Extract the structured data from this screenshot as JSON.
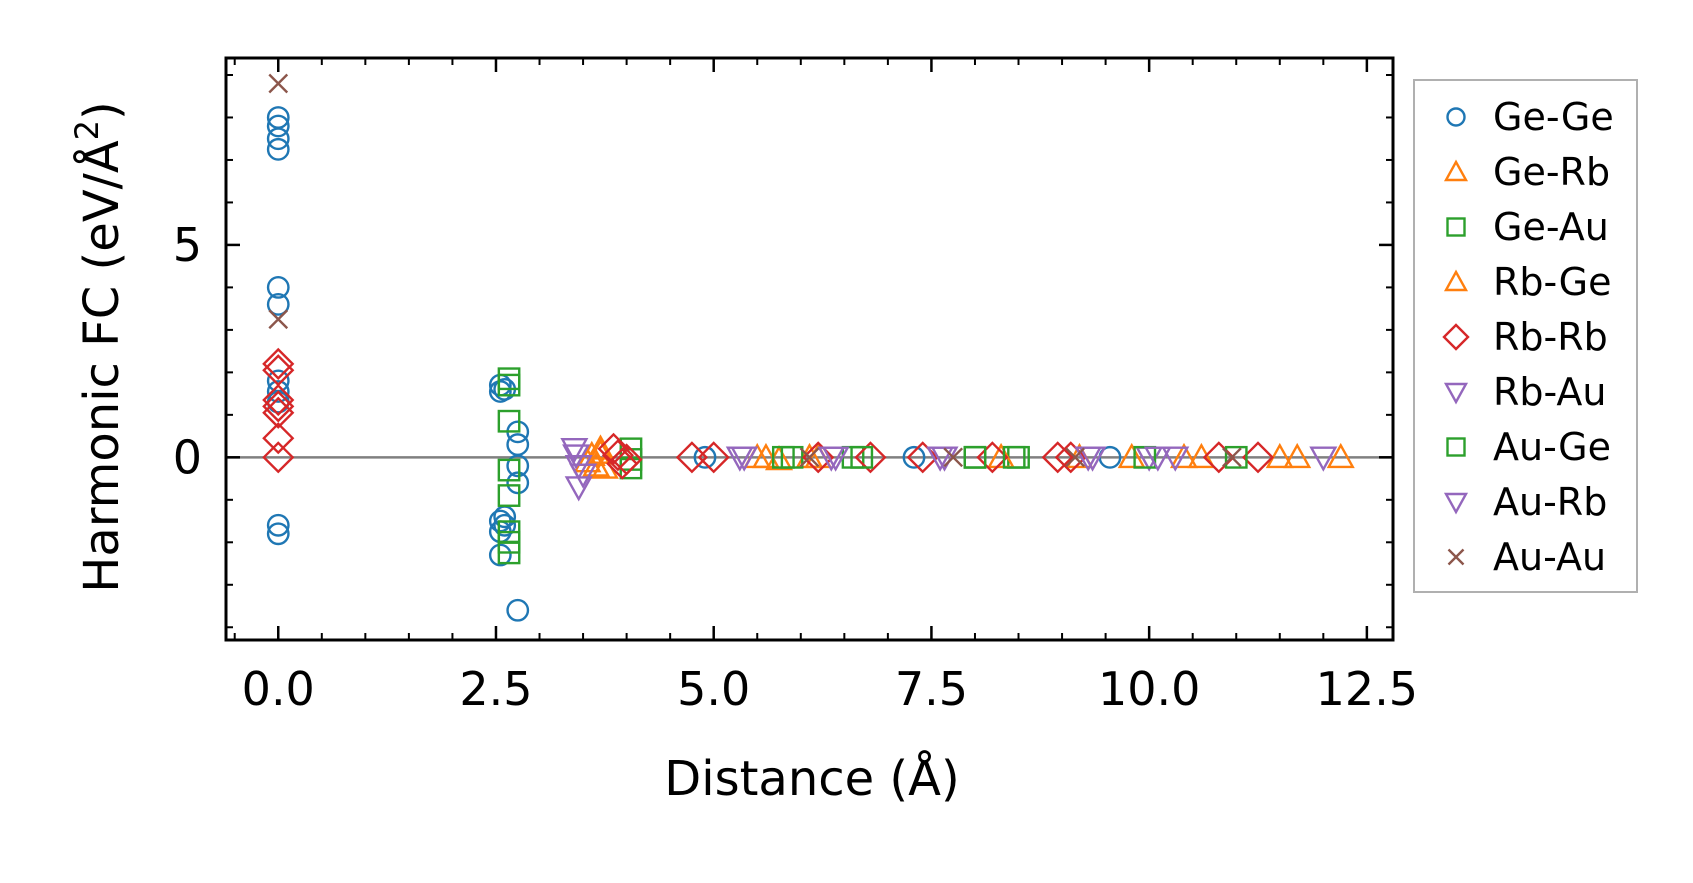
{
  "chart_data": {
    "type": "scatter",
    "xlabel": "Distance (Å)",
    "ylabel": "Harmonic FC (eV/Å",
    "ylabel_sup": "2",
    "ylabel_end": ")",
    "xlim": [
      -0.6,
      12.8
    ],
    "ylim": [
      -4.3,
      9.4
    ],
    "xticks": [
      0,
      2.5,
      5,
      7.5,
      10,
      12.5
    ],
    "xtick_labels": [
      "0.0",
      "2.5",
      "5.0",
      "7.5",
      "10.0",
      "12.5"
    ],
    "yticks": [
      0,
      5
    ],
    "ytick_labels": [
      "0",
      "5"
    ],
    "zero_line": true,
    "grid": false,
    "legend_position": "outside-right",
    "series": [
      {
        "name": "Ge-Ge",
        "marker": "circle",
        "color": "#1f77b4",
        "x": [
          0,
          0,
          0,
          0,
          0,
          0,
          0,
          0,
          0,
          0,
          0,
          2.55,
          2.55,
          2.55,
          2.55,
          2.55,
          2.6,
          2.6,
          2.6,
          2.75,
          2.75,
          2.75,
          2.75,
          2.75,
          4.9,
          7.3,
          9.55
        ],
        "y": [
          8.0,
          7.8,
          7.5,
          7.25,
          4.0,
          3.6,
          1.8,
          1.55,
          -1.6,
          -1.8,
          1.3,
          1.7,
          1.55,
          -1.5,
          -1.75,
          -2.3,
          -1.4,
          -1.6,
          1.6,
          0.6,
          0.3,
          -0.2,
          -0.6,
          -3.6,
          0.0,
          0.0,
          0.0
        ]
      },
      {
        "name": "Ge-Rb",
        "marker": "triangle-up",
        "color": "#ff7f0e",
        "x": [
          3.6,
          3.65,
          3.7,
          5.6,
          5.75,
          6.1,
          9.8,
          10.6,
          11.5,
          11.7,
          12.2
        ],
        "y": [
          0.05,
          -0.2,
          0.2,
          0.0,
          -0.05,
          0.0,
          0.0,
          0.0,
          0.0,
          0.0,
          0.0
        ]
      },
      {
        "name": "Ge-Au",
        "marker": "square",
        "color": "#2ca02c",
        "x": [
          2.65,
          2.65,
          2.65,
          2.65,
          2.65,
          2.65,
          2.65,
          2.65,
          4.05,
          4.05,
          4.05,
          5.9,
          6.6,
          8.0,
          8.5
        ],
        "y": [
          1.85,
          1.7,
          0.85,
          -0.3,
          -0.9,
          -1.75,
          -2.0,
          -2.25,
          0.2,
          -0.05,
          -0.25,
          0.0,
          0.0,
          0.0,
          0.0
        ]
      },
      {
        "name": "Rb-Ge",
        "marker": "triangle-up",
        "color": "#ff7f0e",
        "x": [
          3.55,
          3.7,
          3.75,
          5.5,
          6.2,
          8.3,
          9.2,
          10.4
        ],
        "y": [
          -0.1,
          0.1,
          -0.25,
          0.0,
          0.0,
          0.0,
          0.0,
          0.0
        ]
      },
      {
        "name": "Rb-Rb",
        "marker": "diamond",
        "color": "#d62728",
        "x": [
          0,
          0,
          0,
          0,
          0,
          0,
          0,
          3.85,
          3.9,
          3.95,
          4.0,
          4.75,
          5.0,
          6.2,
          6.8,
          7.4,
          8.2,
          8.95,
          9.1,
          10.8,
          11.25
        ],
        "y": [
          2.2,
          2.05,
          1.35,
          1.2,
          1.05,
          0.45,
          0.0,
          0.2,
          0.05,
          -0.15,
          -0.05,
          0.0,
          0.0,
          0.0,
          0.0,
          0.0,
          0.0,
          0.0,
          0.0,
          0.0,
          0.0
        ]
      },
      {
        "name": "Rb-Au",
        "marker": "triangle-down",
        "color": "#9467bd",
        "x": [
          3.4,
          3.42,
          3.45,
          3.45,
          3.5,
          5.35,
          6.35,
          7.6,
          9.3,
          10.0,
          10.3,
          12.0
        ],
        "y": [
          0.2,
          0.05,
          -0.2,
          -0.7,
          -0.4,
          0.0,
          0.0,
          0.0,
          0.0,
          0.0,
          0.0,
          0.0
        ]
      },
      {
        "name": "Au-Ge",
        "marker": "square",
        "color": "#2ca02c",
        "x": [
          5.8,
          6.7,
          8.0,
          8.45,
          9.95,
          11.0
        ],
        "y": [
          0.0,
          0.0,
          0.0,
          0.0,
          0.0,
          0.0
        ]
      },
      {
        "name": "Au-Rb",
        "marker": "triangle-down",
        "color": "#9467bd",
        "x": [
          5.3,
          6.4,
          7.65,
          9.35,
          10.1
        ],
        "y": [
          0.0,
          0.0,
          0.0,
          0.0,
          0.0
        ]
      },
      {
        "name": "Au-Au",
        "marker": "x",
        "color": "#8c564b",
        "x": [
          0,
          0,
          6.1,
          7.75,
          9.15,
          10.95
        ],
        "y": [
          8.8,
          3.25,
          0.0,
          0.0,
          0.0,
          0.0
        ]
      }
    ]
  }
}
